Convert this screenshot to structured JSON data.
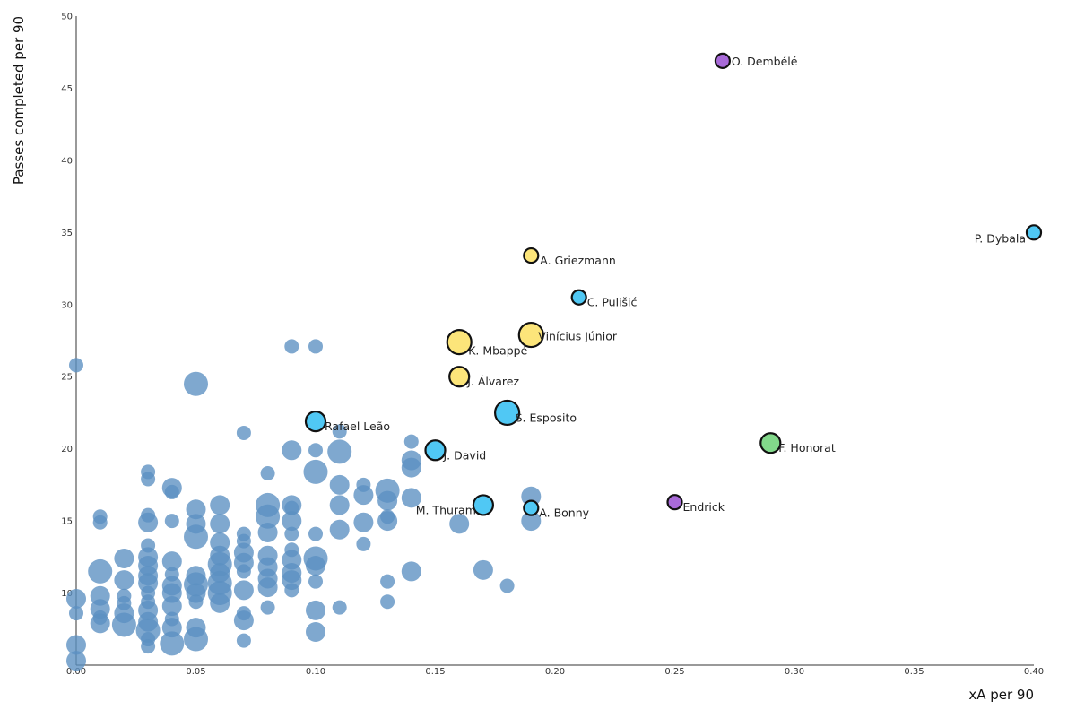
{
  "chart_data": {
    "type": "scatter",
    "title": "",
    "xlabel": "xA per 90",
    "ylabel": "Passes completed per 90",
    "xlim": [
      0,
      0.4
    ],
    "ylim": [
      5,
      50
    ],
    "x_ticks": [
      "0.00",
      "0.05",
      "0.10",
      "0.15",
      "0.20",
      "0.25",
      "0.30",
      "0.35",
      "0.40"
    ],
    "y_ticks": [
      "10",
      "15",
      "20",
      "25",
      "30",
      "35",
      "40",
      "45",
      "50"
    ],
    "grid": false,
    "background_color": "#5b90c1",
    "colors": {
      "yellow": "#fce57a",
      "blue": "#50c8f4",
      "purple": "#a86ad8",
      "green": "#82d88a"
    },
    "background_points": [
      {
        "x": 0.0,
        "y": 25.8,
        "s": 1
      },
      {
        "x": 0.0,
        "y": 9.6,
        "s": 2
      },
      {
        "x": 0.0,
        "y": 8.6,
        "s": 1
      },
      {
        "x": 0.0,
        "y": 6.4,
        "s": 2
      },
      {
        "x": 0.0,
        "y": 5.3,
        "s": 2
      },
      {
        "x": 0.01,
        "y": 15.3,
        "s": 1
      },
      {
        "x": 0.01,
        "y": 14.9,
        "s": 1
      },
      {
        "x": 0.01,
        "y": 11.5,
        "s": 3
      },
      {
        "x": 0.01,
        "y": 9.8,
        "s": 2
      },
      {
        "x": 0.01,
        "y": 8.9,
        "s": 2
      },
      {
        "x": 0.01,
        "y": 8.3,
        "s": 1
      },
      {
        "x": 0.01,
        "y": 7.9,
        "s": 2
      },
      {
        "x": 0.02,
        "y": 12.4,
        "s": 2
      },
      {
        "x": 0.02,
        "y": 10.9,
        "s": 2
      },
      {
        "x": 0.02,
        "y": 9.8,
        "s": 1
      },
      {
        "x": 0.02,
        "y": 9.3,
        "s": 1
      },
      {
        "x": 0.02,
        "y": 8.6,
        "s": 2
      },
      {
        "x": 0.02,
        "y": 7.8,
        "s": 3
      },
      {
        "x": 0.03,
        "y": 18.4,
        "s": 1
      },
      {
        "x": 0.03,
        "y": 17.9,
        "s": 1
      },
      {
        "x": 0.03,
        "y": 15.4,
        "s": 1
      },
      {
        "x": 0.03,
        "y": 14.9,
        "s": 2
      },
      {
        "x": 0.03,
        "y": 13.3,
        "s": 1
      },
      {
        "x": 0.03,
        "y": 12.5,
        "s": 2
      },
      {
        "x": 0.03,
        "y": 11.9,
        "s": 2
      },
      {
        "x": 0.03,
        "y": 11.2,
        "s": 2
      },
      {
        "x": 0.03,
        "y": 10.7,
        "s": 2
      },
      {
        "x": 0.03,
        "y": 10.0,
        "s": 1
      },
      {
        "x": 0.03,
        "y": 9.4,
        "s": 1
      },
      {
        "x": 0.03,
        "y": 8.8,
        "s": 2
      },
      {
        "x": 0.03,
        "y": 8.0,
        "s": 2
      },
      {
        "x": 0.03,
        "y": 7.4,
        "s": 3
      },
      {
        "x": 0.03,
        "y": 6.8,
        "s": 1
      },
      {
        "x": 0.03,
        "y": 6.3,
        "s": 1
      },
      {
        "x": 0.04,
        "y": 17.3,
        "s": 2
      },
      {
        "x": 0.04,
        "y": 17.0,
        "s": 1
      },
      {
        "x": 0.04,
        "y": 15.0,
        "s": 1
      },
      {
        "x": 0.04,
        "y": 12.2,
        "s": 2
      },
      {
        "x": 0.04,
        "y": 11.3,
        "s": 1
      },
      {
        "x": 0.04,
        "y": 10.5,
        "s": 2
      },
      {
        "x": 0.04,
        "y": 10.0,
        "s": 2
      },
      {
        "x": 0.04,
        "y": 9.1,
        "s": 2
      },
      {
        "x": 0.04,
        "y": 8.2,
        "s": 1
      },
      {
        "x": 0.04,
        "y": 7.6,
        "s": 2
      },
      {
        "x": 0.04,
        "y": 6.5,
        "s": 3
      },
      {
        "x": 0.05,
        "y": 24.5,
        "s": 3
      },
      {
        "x": 0.05,
        "y": 15.8,
        "s": 2
      },
      {
        "x": 0.05,
        "y": 14.8,
        "s": 2
      },
      {
        "x": 0.05,
        "y": 13.9,
        "s": 3
      },
      {
        "x": 0.05,
        "y": 11.2,
        "s": 2
      },
      {
        "x": 0.05,
        "y": 10.6,
        "s": 3
      },
      {
        "x": 0.05,
        "y": 10.0,
        "s": 2
      },
      {
        "x": 0.05,
        "y": 9.4,
        "s": 1
      },
      {
        "x": 0.05,
        "y": 7.6,
        "s": 2
      },
      {
        "x": 0.05,
        "y": 6.8,
        "s": 3
      },
      {
        "x": 0.06,
        "y": 16.1,
        "s": 2
      },
      {
        "x": 0.06,
        "y": 14.8,
        "s": 2
      },
      {
        "x": 0.06,
        "y": 13.5,
        "s": 2
      },
      {
        "x": 0.06,
        "y": 12.6,
        "s": 2
      },
      {
        "x": 0.06,
        "y": 12.0,
        "s": 3
      },
      {
        "x": 0.06,
        "y": 11.4,
        "s": 2
      },
      {
        "x": 0.06,
        "y": 10.7,
        "s": 3
      },
      {
        "x": 0.06,
        "y": 10.0,
        "s": 3
      },
      {
        "x": 0.06,
        "y": 9.3,
        "s": 2
      },
      {
        "x": 0.07,
        "y": 21.1,
        "s": 1
      },
      {
        "x": 0.07,
        "y": 14.1,
        "s": 1
      },
      {
        "x": 0.07,
        "y": 13.6,
        "s": 1
      },
      {
        "x": 0.07,
        "y": 12.8,
        "s": 2
      },
      {
        "x": 0.07,
        "y": 12.1,
        "s": 2
      },
      {
        "x": 0.07,
        "y": 11.5,
        "s": 1
      },
      {
        "x": 0.07,
        "y": 10.2,
        "s": 2
      },
      {
        "x": 0.07,
        "y": 8.6,
        "s": 1
      },
      {
        "x": 0.07,
        "y": 8.1,
        "s": 2
      },
      {
        "x": 0.07,
        "y": 6.7,
        "s": 1
      },
      {
        "x": 0.08,
        "y": 18.3,
        "s": 1
      },
      {
        "x": 0.08,
        "y": 16.1,
        "s": 3
      },
      {
        "x": 0.08,
        "y": 15.3,
        "s": 3
      },
      {
        "x": 0.08,
        "y": 14.2,
        "s": 2
      },
      {
        "x": 0.08,
        "y": 12.6,
        "s": 2
      },
      {
        "x": 0.08,
        "y": 11.8,
        "s": 2
      },
      {
        "x": 0.08,
        "y": 11.0,
        "s": 2
      },
      {
        "x": 0.08,
        "y": 10.4,
        "s": 2
      },
      {
        "x": 0.08,
        "y": 9.0,
        "s": 1
      },
      {
        "x": 0.09,
        "y": 27.1,
        "s": 1
      },
      {
        "x": 0.09,
        "y": 19.9,
        "s": 2
      },
      {
        "x": 0.09,
        "y": 16.1,
        "s": 2
      },
      {
        "x": 0.09,
        "y": 15.9,
        "s": 1
      },
      {
        "x": 0.09,
        "y": 15.0,
        "s": 2
      },
      {
        "x": 0.09,
        "y": 14.1,
        "s": 1
      },
      {
        "x": 0.09,
        "y": 13.0,
        "s": 1
      },
      {
        "x": 0.09,
        "y": 12.3,
        "s": 2
      },
      {
        "x": 0.09,
        "y": 11.4,
        "s": 2
      },
      {
        "x": 0.09,
        "y": 10.9,
        "s": 2
      },
      {
        "x": 0.09,
        "y": 10.2,
        "s": 1
      },
      {
        "x": 0.1,
        "y": 27.1,
        "s": 1
      },
      {
        "x": 0.1,
        "y": 19.9,
        "s": 1
      },
      {
        "x": 0.1,
        "y": 18.4,
        "s": 3
      },
      {
        "x": 0.1,
        "y": 14.1,
        "s": 1
      },
      {
        "x": 0.1,
        "y": 12.4,
        "s": 3
      },
      {
        "x": 0.1,
        "y": 11.9,
        "s": 2
      },
      {
        "x": 0.1,
        "y": 10.8,
        "s": 1
      },
      {
        "x": 0.1,
        "y": 8.8,
        "s": 2
      },
      {
        "x": 0.1,
        "y": 7.3,
        "s": 2
      },
      {
        "x": 0.11,
        "y": 21.2,
        "s": 1
      },
      {
        "x": 0.11,
        "y": 19.8,
        "s": 3
      },
      {
        "x": 0.11,
        "y": 17.5,
        "s": 2
      },
      {
        "x": 0.11,
        "y": 16.1,
        "s": 2
      },
      {
        "x": 0.11,
        "y": 14.4,
        "s": 2
      },
      {
        "x": 0.11,
        "y": 9.0,
        "s": 1
      },
      {
        "x": 0.12,
        "y": 17.5,
        "s": 1
      },
      {
        "x": 0.12,
        "y": 16.8,
        "s": 2
      },
      {
        "x": 0.12,
        "y": 14.9,
        "s": 2
      },
      {
        "x": 0.12,
        "y": 13.4,
        "s": 1
      },
      {
        "x": 0.13,
        "y": 17.1,
        "s": 3
      },
      {
        "x": 0.13,
        "y": 16.4,
        "s": 2
      },
      {
        "x": 0.13,
        "y": 15.3,
        "s": 1
      },
      {
        "x": 0.13,
        "y": 15.0,
        "s": 2
      },
      {
        "x": 0.13,
        "y": 10.8,
        "s": 1
      },
      {
        "x": 0.13,
        "y": 9.4,
        "s": 1
      },
      {
        "x": 0.14,
        "y": 20.5,
        "s": 1
      },
      {
        "x": 0.14,
        "y": 19.2,
        "s": 2
      },
      {
        "x": 0.14,
        "y": 18.7,
        "s": 2
      },
      {
        "x": 0.14,
        "y": 16.6,
        "s": 2
      },
      {
        "x": 0.14,
        "y": 11.5,
        "s": 2
      },
      {
        "x": 0.16,
        "y": 14.8,
        "s": 2
      },
      {
        "x": 0.17,
        "y": 11.6,
        "s": 2
      },
      {
        "x": 0.18,
        "y": 10.5,
        "s": 1
      },
      {
        "x": 0.19,
        "y": 16.7,
        "s": 2
      },
      {
        "x": 0.19,
        "y": 15.0,
        "s": 2
      }
    ],
    "highlighted": [
      {
        "name": "O. Dembélé",
        "x": 0.27,
        "y": 46.9,
        "s": 1,
        "color": "purple"
      },
      {
        "name": "P. Dybala",
        "x": 0.4,
        "y": 35.0,
        "s": 1,
        "color": "blue"
      },
      {
        "name": "A. Griezmann",
        "x": 0.19,
        "y": 33.4,
        "s": 1,
        "color": "yellow"
      },
      {
        "name": "C. Pulišić",
        "x": 0.21,
        "y": 30.5,
        "s": 1,
        "color": "blue"
      },
      {
        "name": "Vinícius Júnior",
        "x": 0.19,
        "y": 27.9,
        "s": 3,
        "color": "yellow"
      },
      {
        "name": "K. Mbappé",
        "x": 0.16,
        "y": 27.4,
        "s": 3,
        "color": "yellow"
      },
      {
        "name": "J. Álvarez",
        "x": 0.16,
        "y": 25.0,
        "s": 2,
        "color": "yellow"
      },
      {
        "name": "S. Esposito",
        "x": 0.18,
        "y": 22.5,
        "s": 3,
        "color": "blue"
      },
      {
        "name": "Rafael Leão",
        "x": 0.1,
        "y": 21.9,
        "s": 2,
        "color": "blue"
      },
      {
        "name": "J. David",
        "x": 0.15,
        "y": 19.9,
        "s": 2,
        "color": "blue"
      },
      {
        "name": "F. Honorat",
        "x": 0.29,
        "y": 20.4,
        "s": 2,
        "color": "green"
      },
      {
        "name": "M. Thuram",
        "x": 0.17,
        "y": 16.1,
        "s": 2,
        "color": "blue"
      },
      {
        "name": "A. Bonny",
        "x": 0.19,
        "y": 15.9,
        "s": 1,
        "color": "blue"
      },
      {
        "name": "Endrick",
        "x": 0.25,
        "y": 16.3,
        "s": 1,
        "color": "purple"
      }
    ]
  }
}
